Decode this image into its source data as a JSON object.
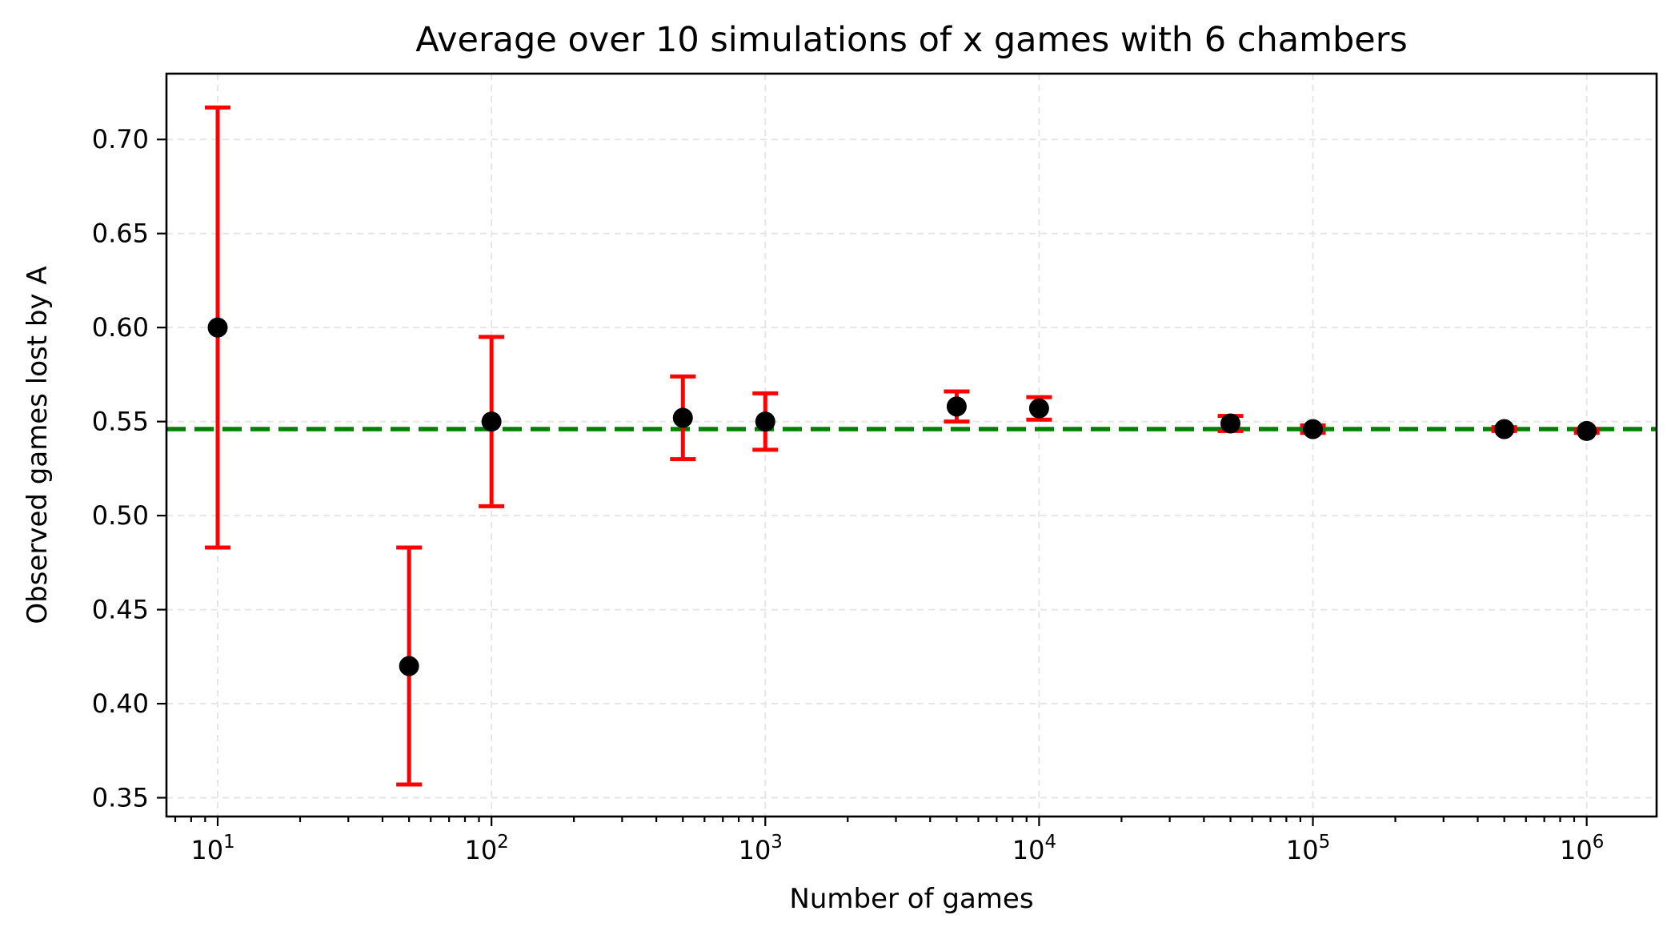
{
  "chart_data": {
    "type": "scatter",
    "title": "Average over 10 simulations of x games with 6 chambers",
    "xlabel": "Number of games",
    "ylabel": "Observed games lost by A",
    "xscale": "log",
    "xlim": [
      6.5,
      1800000
    ],
    "ylim": [
      0.34,
      0.735
    ],
    "grid": true,
    "x_ticks": [
      {
        "base": "10",
        "exp": "1",
        "value": 10
      },
      {
        "base": "10",
        "exp": "2",
        "value": 100
      },
      {
        "base": "10",
        "exp": "3",
        "value": 1000
      },
      {
        "base": "10",
        "exp": "4",
        "value": 10000
      },
      {
        "base": "10",
        "exp": "5",
        "value": 100000
      },
      {
        "base": "10",
        "exp": "6",
        "value": 1000000
      }
    ],
    "y_ticks": [
      "0.35",
      "0.40",
      "0.45",
      "0.50",
      "0.55",
      "0.60",
      "0.65",
      "0.70"
    ],
    "reference_line": {
      "y": 0.546,
      "color": "#008000",
      "style": "dashed"
    },
    "errorbar_color": "#ff0000",
    "point_color": "#000000",
    "points": [
      {
        "x": 10,
        "y": 0.6,
        "err": 0.117
      },
      {
        "x": 50,
        "y": 0.42,
        "err": 0.063
      },
      {
        "x": 100,
        "y": 0.55,
        "err": 0.045
      },
      {
        "x": 500,
        "y": 0.552,
        "err": 0.022
      },
      {
        "x": 1000,
        "y": 0.55,
        "err": 0.015
      },
      {
        "x": 5000,
        "y": 0.558,
        "err": 0.008
      },
      {
        "x": 10000,
        "y": 0.557,
        "err": 0.006
      },
      {
        "x": 50000,
        "y": 0.549,
        "err": 0.004
      },
      {
        "x": 100000,
        "y": 0.546,
        "err": 0.002
      },
      {
        "x": 500000,
        "y": 0.546,
        "err": 0.001
      },
      {
        "x": 1000000,
        "y": 0.545,
        "err": 0.001
      }
    ]
  }
}
